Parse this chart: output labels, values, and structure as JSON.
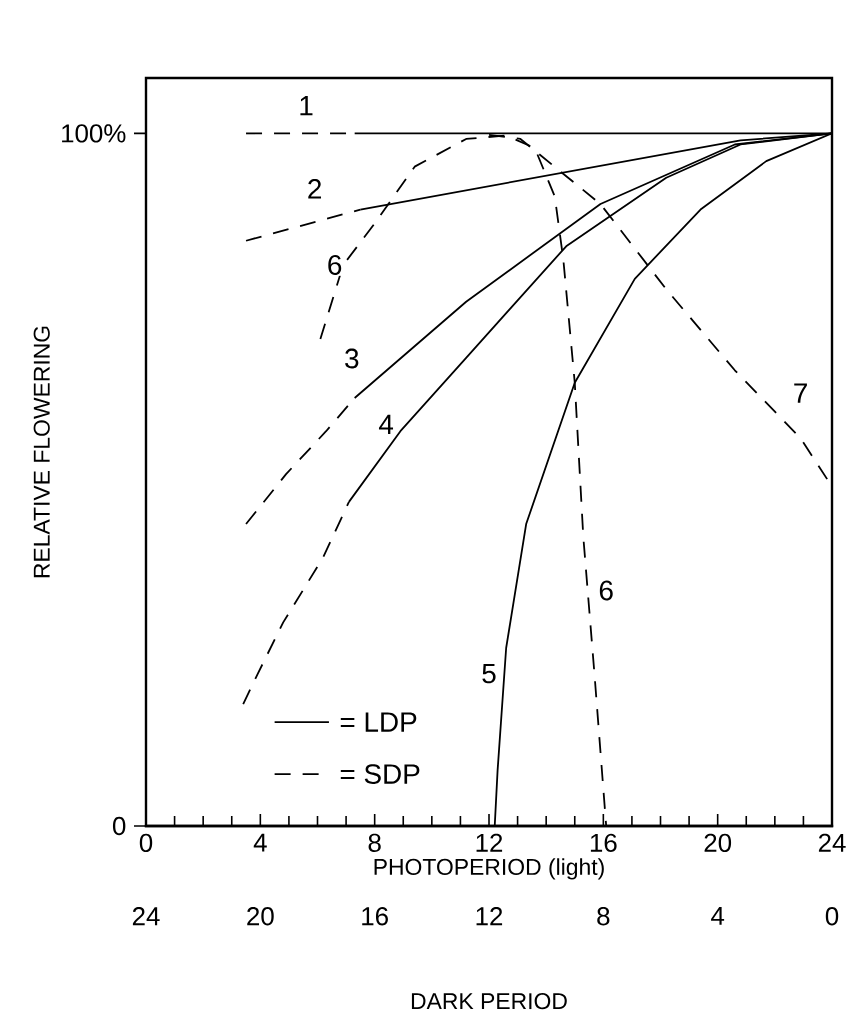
{
  "chart_data": {
    "type": "line",
    "xlabel": "PHOTOPERIOD (light)",
    "ylabel": "RELATIVE FLOWERING",
    "x2label": "DARK PERIOD",
    "xlim": [
      0,
      24
    ],
    "xticks": [
      0,
      4,
      8,
      12,
      16,
      20,
      24
    ],
    "x2lim": [
      24,
      0
    ],
    "x2ticks": [
      24,
      20,
      16,
      12,
      8,
      4,
      0
    ],
    "ylim": [
      0,
      108
    ],
    "yticks": [
      0,
      {
        "value": 100,
        "label": "100%"
      }
    ],
    "annotations": [
      "= LDP",
      "= SDP"
    ],
    "series": [
      {
        "name": "1",
        "color": "#000000",
        "line_style": "dashed",
        "x": [
          3.5,
          7.3
        ],
        "values": [
          100,
          100
        ]
      },
      {
        "color": "#000000",
        "line_style": "solid",
        "x": [
          7.3,
          24
        ],
        "values": [
          100,
          100
        ]
      },
      {
        "name": "2",
        "color": "#000000",
        "line_style": "dashed",
        "x": [
          3.5,
          7.5
        ],
        "values": [
          84.5,
          89
        ]
      },
      {
        "color": "#000000",
        "line_style": "solid",
        "x": [
          7.5,
          20.8,
          24
        ],
        "values": [
          89,
          99,
          100
        ]
      },
      {
        "color": "#000000",
        "line_style": "dashed",
        "x": [
          3.5,
          4.9,
          6.3,
          7.3
        ],
        "values": [
          43.6,
          50.8,
          57,
          61.8
        ]
      },
      {
        "name": "3",
        "color": "#000000",
        "line_style": "solid",
        "x": [
          7.3,
          11.2,
          15.9,
          20.6,
          24
        ],
        "values": [
          61.8,
          75.7,
          89.8,
          98.4,
          100
        ]
      },
      {
        "color": "#000000",
        "line_style": "dashed",
        "x": [
          3.4,
          3.9,
          4.8,
          6.2,
          7.1
        ],
        "values": [
          17.6,
          21.9,
          29.4,
          38.8,
          46.8
        ]
      },
      {
        "name": "4",
        "color": "#000000",
        "line_style": "solid",
        "x": [
          7.1,
          8.9,
          11.2,
          14.7,
          18.2,
          20.8,
          24
        ],
        "values": [
          46.8,
          57,
          67.6,
          83.7,
          93.6,
          98.4,
          100
        ]
      },
      {
        "name": "5",
        "color": "#000000",
        "line_style": "solid",
        "x": [
          12.2,
          12.3,
          12.6,
          13.3,
          15,
          17.1,
          19.4,
          21.7,
          24
        ],
        "values": [
          0,
          8,
          25.7,
          43.6,
          64,
          79,
          89,
          96,
          100
        ]
      },
      {
        "name": "6",
        "color": "#000000",
        "line_style": "dashed",
        "x": [
          6.1,
          6.9,
          8,
          9.4,
          11.2,
          12.6,
          13.6,
          14.3,
          14.6,
          15,
          15.3,
          15.7,
          16.1
        ],
        "values": [
          70.3,
          81,
          87,
          95.2,
          99.2,
          99.7,
          97.9,
          90.9,
          81.8,
          64,
          41.7,
          21.4,
          0
        ]
      },
      {
        "name": "7",
        "color": "#000000",
        "line_style": "dashed",
        "x": [
          12,
          13.1,
          15.9,
          18.2,
          20.6,
          22.9,
          24
        ],
        "values": [
          99.8,
          99.2,
          89.8,
          77.5,
          65.8,
          56,
          49
        ]
      }
    ]
  }
}
